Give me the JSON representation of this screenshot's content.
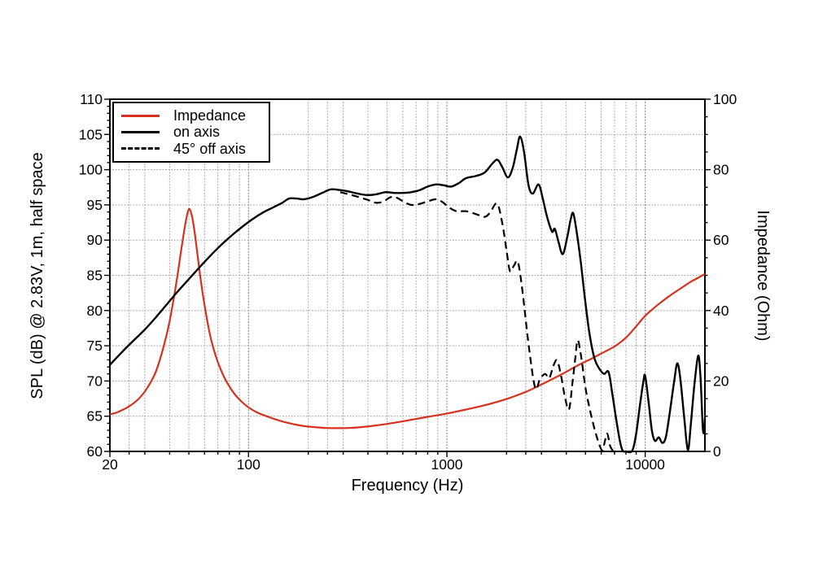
{
  "chart_data": {
    "type": "line",
    "title": "",
    "xlabel": "Frequency (Hz)",
    "ylabel_left": "SPL (dB) @ 2.83V, 1m, half space",
    "ylabel_right": "Impedance (Ohm)",
    "x_scale": "log",
    "xlim": [
      20,
      20000
    ],
    "ylim_left": [
      60,
      110
    ],
    "ylim_right": [
      0,
      100
    ],
    "x_ticks": [
      {
        "f": 20,
        "label": "20"
      },
      {
        "f": 100,
        "label": "100"
      },
      {
        "f": 1000,
        "label": "1000"
      },
      {
        "f": 10000,
        "label": "10000"
      }
    ],
    "x_major_gridlines": [
      100,
      1000,
      10000
    ],
    "x_minor_gridlines": [
      25,
      30,
      40,
      50,
      60,
      70,
      80,
      90,
      200,
      250,
      300,
      400,
      500,
      600,
      700,
      800,
      900,
      2000,
      2500,
      3000,
      4000,
      5000,
      6000,
      7000,
      8000,
      9000
    ],
    "y_ticks_left": [
      60,
      65,
      70,
      75,
      80,
      85,
      90,
      95,
      100,
      105,
      110
    ],
    "y_ticks_right": [
      0,
      20,
      40,
      60,
      80,
      100
    ],
    "y_gridlines": [
      65,
      70,
      75,
      80,
      85,
      90,
      95,
      100,
      105
    ],
    "grid": "dotted",
    "grid_minor_color": "#ababab",
    "grid_major_color": "#8c8c8c",
    "frame_color": "#000000",
    "legend_position": "top-left",
    "legend_entries": [
      "Impedance",
      "on axis",
      "45° off axis"
    ],
    "series": [
      {
        "name": "Impedance",
        "axis": "right",
        "unit": "Ohm",
        "line_style": "solid",
        "color": "#d8301f",
        "width": 2.2,
        "points": [
          [
            20,
            10.5
          ],
          [
            22,
            11.2
          ],
          [
            25,
            12.8
          ],
          [
            28,
            15.0
          ],
          [
            31,
            18.2
          ],
          [
            34,
            22.5
          ],
          [
            37,
            29.0
          ],
          [
            40,
            37.0
          ],
          [
            43,
            47.0
          ],
          [
            46,
            58.0
          ],
          [
            48,
            64.5
          ],
          [
            50,
            68.8
          ],
          [
            52,
            66.5
          ],
          [
            54,
            60.5
          ],
          [
            57,
            50.0
          ],
          [
            60,
            41.5
          ],
          [
            64,
            33.0
          ],
          [
            68,
            27.5
          ],
          [
            73,
            22.8
          ],
          [
            78,
            19.5
          ],
          [
            85,
            16.3
          ],
          [
            92,
            14.2
          ],
          [
            100,
            12.5
          ],
          [
            110,
            11.1
          ],
          [
            122,
            10.1
          ],
          [
            135,
            9.2
          ],
          [
            150,
            8.4
          ],
          [
            170,
            7.7
          ],
          [
            190,
            7.2
          ],
          [
            215,
            6.9
          ],
          [
            245,
            6.65
          ],
          [
            280,
            6.6
          ],
          [
            320,
            6.65
          ],
          [
            370,
            6.9
          ],
          [
            430,
            7.3
          ],
          [
            500,
            7.8
          ],
          [
            580,
            8.4
          ],
          [
            680,
            9.1
          ],
          [
            780,
            9.7
          ],
          [
            900,
            10.3
          ],
          [
            1050,
            11.0
          ],
          [
            1250,
            11.9
          ],
          [
            1500,
            12.9
          ],
          [
            1800,
            14.1
          ],
          [
            2100,
            15.3
          ],
          [
            2500,
            16.9
          ],
          [
            3000,
            19.0
          ],
          [
            3500,
            20.9
          ],
          [
            4000,
            22.6
          ],
          [
            4600,
            24.5
          ],
          [
            5300,
            26.2
          ],
          [
            6000,
            27.8
          ],
          [
            7000,
            29.8
          ],
          [
            8000,
            32.3
          ],
          [
            9000,
            35.5
          ],
          [
            10000,
            38.5
          ],
          [
            11500,
            41.5
          ],
          [
            13000,
            43.8
          ],
          [
            15000,
            46.2
          ],
          [
            17000,
            48.2
          ],
          [
            18500,
            49.3
          ],
          [
            20000,
            50.4
          ]
        ]
      },
      {
        "name": "on axis",
        "axis": "left",
        "unit": "dB",
        "line_style": "solid",
        "color": "#000000",
        "width": 2.4,
        "points": [
          [
            20,
            72.3
          ],
          [
            23,
            74.1
          ],
          [
            26,
            75.6
          ],
          [
            30,
            77.3
          ],
          [
            34,
            79.0
          ],
          [
            38,
            80.6
          ],
          [
            43,
            82.4
          ],
          [
            48,
            83.9
          ],
          [
            54,
            85.5
          ],
          [
            60,
            86.9
          ],
          [
            68,
            88.5
          ],
          [
            76,
            89.8
          ],
          [
            85,
            91.0
          ],
          [
            95,
            92.1
          ],
          [
            105,
            93.0
          ],
          [
            118,
            93.9
          ],
          [
            132,
            94.6
          ],
          [
            148,
            95.3
          ],
          [
            160,
            95.9
          ],
          [
            175,
            95.9
          ],
          [
            190,
            95.8
          ],
          [
            210,
            96.1
          ],
          [
            235,
            96.7
          ],
          [
            260,
            97.2
          ],
          [
            290,
            97.1
          ],
          [
            320,
            96.9
          ],
          [
            355,
            96.6
          ],
          [
            395,
            96.4
          ],
          [
            440,
            96.5
          ],
          [
            490,
            96.8
          ],
          [
            540,
            96.7
          ],
          [
            600,
            96.7
          ],
          [
            660,
            96.8
          ],
          [
            730,
            97.1
          ],
          [
            800,
            97.6
          ],
          [
            880,
            97.9
          ],
          [
            960,
            97.8
          ],
          [
            1050,
            97.6
          ],
          [
            1150,
            98.1
          ],
          [
            1250,
            98.8
          ],
          [
            1400,
            99.1
          ],
          [
            1550,
            99.6
          ],
          [
            1700,
            100.9
          ],
          [
            1800,
            101.4
          ],
          [
            1900,
            100.4
          ],
          [
            2030,
            98.9
          ],
          [
            2150,
            100.3
          ],
          [
            2250,
            102.8
          ],
          [
            2340,
            104.7
          ],
          [
            2450,
            102.5
          ],
          [
            2580,
            97.8
          ],
          [
            2710,
            96.6
          ],
          [
            2900,
            97.9
          ],
          [
            3050,
            95.8
          ],
          [
            3200,
            93.3
          ],
          [
            3390,
            91.2
          ],
          [
            3500,
            91.6
          ],
          [
            3650,
            89.8
          ],
          [
            3840,
            88.0
          ],
          [
            4050,
            90.5
          ],
          [
            4200,
            92.8
          ],
          [
            4340,
            93.8
          ],
          [
            4550,
            90.5
          ],
          [
            4750,
            86.5
          ],
          [
            5000,
            81.0
          ],
          [
            5250,
            76.5
          ],
          [
            5550,
            73.2
          ],
          [
            5850,
            71.8
          ],
          [
            6200,
            71.0
          ],
          [
            6530,
            71.3
          ],
          [
            6800,
            68.5
          ],
          [
            7100,
            65.0
          ],
          [
            7450,
            61.5
          ],
          [
            7700,
            60.1
          ],
          [
            8000,
            60.0
          ],
          [
            8600,
            60.1
          ],
          [
            9000,
            62.5
          ],
          [
            9400,
            66.5
          ],
          [
            9800,
            70.0
          ],
          [
            10000,
            70.7
          ],
          [
            10400,
            67.0
          ],
          [
            10800,
            63.0
          ],
          [
            11200,
            61.5
          ],
          [
            11700,
            62.0
          ],
          [
            12200,
            61.2
          ],
          [
            12700,
            62.0
          ],
          [
            13300,
            65.5
          ],
          [
            14000,
            70.0
          ],
          [
            14500,
            72.5
          ],
          [
            15000,
            70.5
          ],
          [
            15700,
            65.0
          ],
          [
            16400,
            60.2
          ],
          [
            17000,
            64.0
          ],
          [
            17700,
            69.5
          ],
          [
            18500,
            73.6
          ],
          [
            19000,
            70.5
          ],
          [
            19500,
            63.5
          ],
          [
            19800,
            62.8
          ],
          [
            20000,
            64.8
          ]
        ]
      },
      {
        "name": "45° off axis",
        "axis": "left",
        "unit": "dB",
        "line_style": "dashed",
        "color": "#000000",
        "width": 2.2,
        "points": [
          [
            290,
            96.8
          ],
          [
            320,
            96.5
          ],
          [
            360,
            96.1
          ],
          [
            400,
            95.7
          ],
          [
            440,
            95.3
          ],
          [
            480,
            95.5
          ],
          [
            520,
            96.1
          ],
          [
            560,
            96.0
          ],
          [
            610,
            95.4
          ],
          [
            660,
            95.0
          ],
          [
            720,
            95.1
          ],
          [
            800,
            95.5
          ],
          [
            880,
            95.8
          ],
          [
            950,
            95.4
          ],
          [
            1030,
            94.6
          ],
          [
            1120,
            94.1
          ],
          [
            1250,
            94.1
          ],
          [
            1400,
            93.7
          ],
          [
            1550,
            93.3
          ],
          [
            1650,
            93.9
          ],
          [
            1790,
            95.2
          ],
          [
            1900,
            92.5
          ],
          [
            2000,
            88.5
          ],
          [
            2080,
            85.6
          ],
          [
            2180,
            86.4
          ],
          [
            2280,
            86.9
          ],
          [
            2400,
            83.0
          ],
          [
            2600,
            74.5
          ],
          [
            2790,
            69.0
          ],
          [
            2950,
            70.3
          ],
          [
            3130,
            71.0
          ],
          [
            3280,
            70.4
          ],
          [
            3450,
            72.2
          ],
          [
            3600,
            72.9
          ],
          [
            3780,
            70.5
          ],
          [
            3950,
            67.5
          ],
          [
            4130,
            66.0
          ],
          [
            4300,
            69.8
          ],
          [
            4450,
            73.5
          ],
          [
            4570,
            75.8
          ],
          [
            4750,
            73.5
          ],
          [
            5000,
            69.0
          ],
          [
            5300,
            65.5
          ],
          [
            5600,
            62.8
          ],
          [
            5900,
            60.8
          ],
          [
            6100,
            60.2
          ],
          [
            6300,
            61.8
          ],
          [
            6450,
            62.5
          ],
          [
            6650,
            60.8
          ],
          [
            6900,
            60.0
          ]
        ]
      }
    ]
  }
}
